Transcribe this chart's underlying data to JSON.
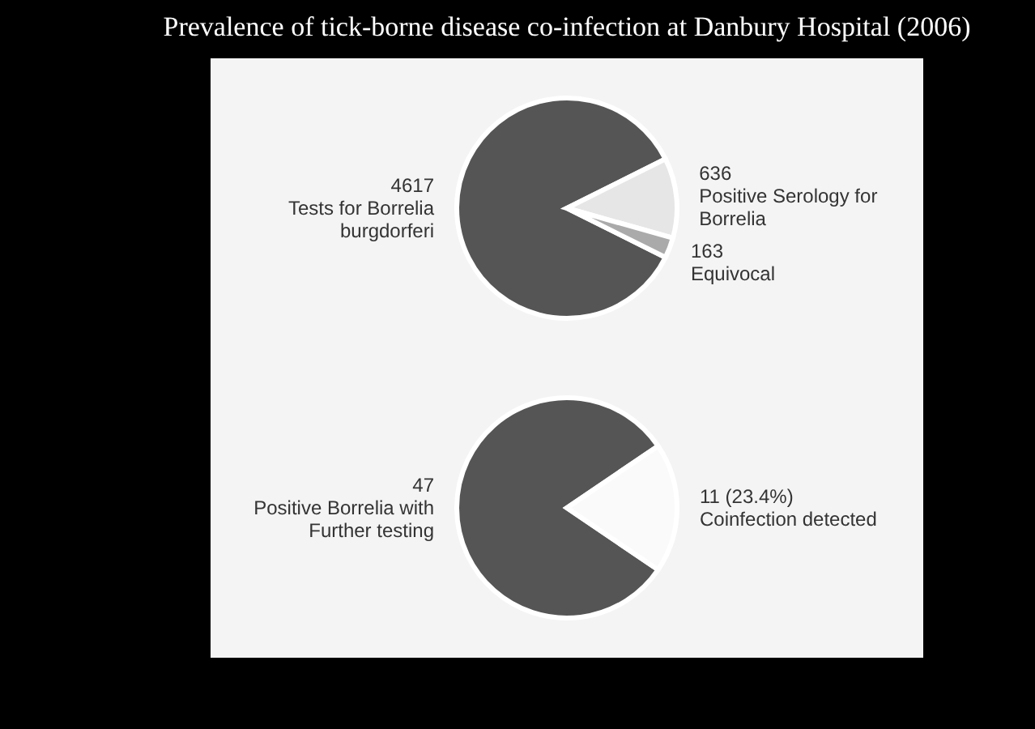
{
  "chart_data": [
    {
      "type": "pie",
      "title": "Prevalence of tick-borne disease co-infection at Danbury Hospital (2006)",
      "categories": [
        "Tests for Borrelia burgdorferi",
        "Positive Serology for Borrelia",
        "Equivocal"
      ],
      "values": [
        4617,
        636,
        163
      ],
      "value_labels": [
        "4617",
        "636",
        "163"
      ],
      "colors": [
        "#555555",
        "#e6e6e6",
        "#aaaaaa"
      ]
    },
    {
      "type": "pie",
      "categories": [
        "Positive Borrelia with Further testing",
        "Coinfection detected"
      ],
      "values": [
        47,
        11
      ],
      "value_labels": [
        "47",
        "11 (23.4%)"
      ],
      "colors": [
        "#555555",
        "#fafafa"
      ]
    }
  ]
}
